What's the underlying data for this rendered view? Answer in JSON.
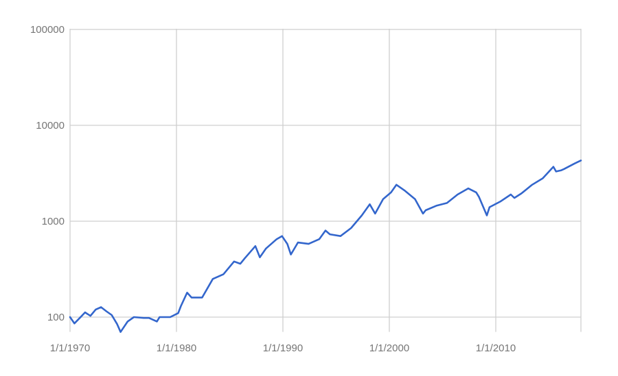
{
  "chart_data": {
    "type": "line",
    "yscale": "log",
    "ylim": [
      70,
      100000
    ],
    "xlim": [
      "1970-01-01",
      "2018-01-01"
    ],
    "grid": true,
    "legend": "none",
    "y_ticks": [
      {
        "value": 100,
        "label": "100"
      },
      {
        "value": 1000,
        "label": "1000"
      },
      {
        "value": 10000,
        "label": "10000"
      },
      {
        "value": 100000,
        "label": "100000"
      }
    ],
    "x_ticks": [
      {
        "value": "1970-01-01",
        "label": "1/1/1970"
      },
      {
        "value": "1980-01-01",
        "label": "1/1/1980"
      },
      {
        "value": "1990-01-01",
        "label": "1/1/1990"
      },
      {
        "value": "2000-01-01",
        "label": "1/1/2000"
      },
      {
        "value": "2010-01-01",
        "label": "1/1/2010"
      }
    ],
    "series": [
      {
        "color": "#3366cc",
        "points": [
          [
            "1970-01-01",
            100
          ],
          [
            "1970-06-01",
            86
          ],
          [
            "1970-12-01",
            98
          ],
          [
            "1971-06-01",
            112
          ],
          [
            "1971-12-01",
            103
          ],
          [
            "1972-06-01",
            120
          ],
          [
            "1972-12-01",
            127
          ],
          [
            "1973-06-01",
            115
          ],
          [
            "1973-12-01",
            105
          ],
          [
            "1974-06-01",
            85
          ],
          [
            "1974-10-01",
            70
          ],
          [
            "1975-06-01",
            90
          ],
          [
            "1976-01-01",
            100
          ],
          [
            "1976-12-01",
            98
          ],
          [
            "1977-06-01",
            98
          ],
          [
            "1978-03-01",
            90
          ],
          [
            "1978-06-01",
            100
          ],
          [
            "1979-06-01",
            100
          ],
          [
            "1980-03-01",
            110
          ],
          [
            "1980-06-01",
            130
          ],
          [
            "1981-01-01",
            180
          ],
          [
            "1981-06-01",
            160
          ],
          [
            "1982-06-01",
            160
          ],
          [
            "1983-06-01",
            250
          ],
          [
            "1984-06-01",
            280
          ],
          [
            "1985-06-01",
            380
          ],
          [
            "1986-01-01",
            360
          ],
          [
            "1986-06-01",
            410
          ],
          [
            "1987-06-01",
            550
          ],
          [
            "1987-11-01",
            420
          ],
          [
            "1988-06-01",
            520
          ],
          [
            "1989-06-01",
            650
          ],
          [
            "1989-12-01",
            700
          ],
          [
            "1990-06-01",
            580
          ],
          [
            "1990-10-01",
            450
          ],
          [
            "1991-06-01",
            600
          ],
          [
            "1992-06-01",
            580
          ],
          [
            "1993-06-01",
            650
          ],
          [
            "1994-01-01",
            800
          ],
          [
            "1994-06-01",
            730
          ],
          [
            "1995-06-01",
            700
          ],
          [
            "1996-06-01",
            850
          ],
          [
            "1997-06-01",
            1150
          ],
          [
            "1998-03-01",
            1500
          ],
          [
            "1998-09-01",
            1200
          ],
          [
            "1999-06-01",
            1700
          ],
          [
            "2000-03-01",
            2000
          ],
          [
            "2000-09-01",
            2400
          ],
          [
            "2001-06-01",
            2100
          ],
          [
            "2002-06-01",
            1700
          ],
          [
            "2003-03-01",
            1200
          ],
          [
            "2003-06-01",
            1300
          ],
          [
            "2004-06-01",
            1450
          ],
          [
            "2005-06-01",
            1550
          ],
          [
            "2006-06-01",
            1900
          ],
          [
            "2007-06-01",
            2200
          ],
          [
            "2008-03-01",
            2000
          ],
          [
            "2008-06-01",
            1800
          ],
          [
            "2009-03-01",
            1150
          ],
          [
            "2009-06-01",
            1400
          ],
          [
            "2010-06-01",
            1600
          ],
          [
            "2011-06-01",
            1900
          ],
          [
            "2011-10-01",
            1750
          ],
          [
            "2012-06-01",
            1950
          ],
          [
            "2013-06-01",
            2400
          ],
          [
            "2014-06-01",
            2800
          ],
          [
            "2015-06-01",
            3700
          ],
          [
            "2015-09-01",
            3300
          ],
          [
            "2016-03-01",
            3400
          ],
          [
            "2016-06-01",
            3500
          ],
          [
            "2017-06-01",
            4000
          ],
          [
            "2018-01-01",
            4300
          ]
        ]
      }
    ]
  }
}
